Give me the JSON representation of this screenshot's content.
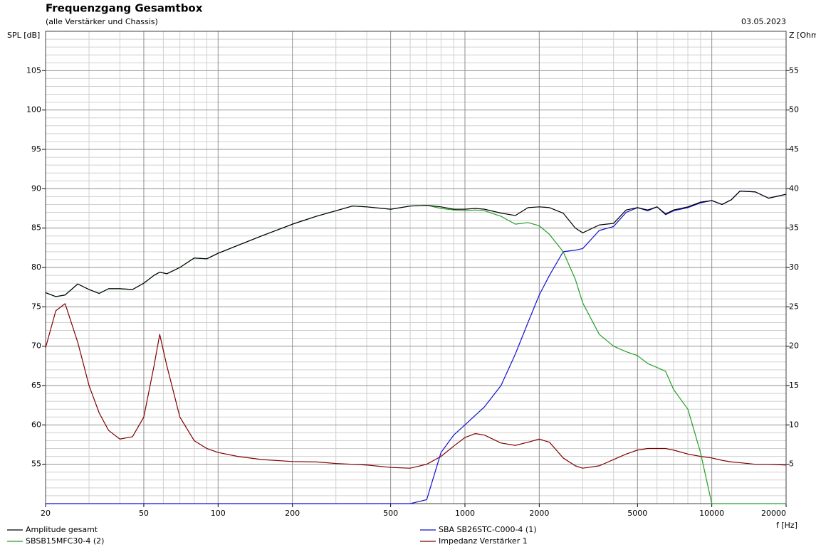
{
  "chart_data": {
    "type": "line",
    "title": "Frequenzgang Gesamtbox",
    "subtitle": "(alle Verstärker und Chassis)",
    "date": "03.05.2023",
    "ylabel": "SPL [dB]",
    "y2label": "Z [Ohm]",
    "xlabel": "f [Hz]",
    "xscale": "log",
    "grid": true,
    "legend": "bottom",
    "x": [
      20,
      22,
      24,
      27,
      30,
      33,
      36,
      40,
      45,
      50,
      55,
      58,
      62,
      70,
      80,
      90,
      100,
      120,
      150,
      200,
      250,
      300,
      350,
      400,
      500,
      600,
      700,
      800,
      900,
      1000,
      1100,
      1200,
      1400,
      1600,
      1800,
      2000,
      2200,
      2500,
      2800,
      3000,
      3500,
      4000,
      4500,
      5000,
      5500,
      6000,
      6500,
      7000,
      8000,
      9000,
      10000,
      11000,
      12000,
      13000,
      15000,
      17000,
      20000
    ],
    "series": [
      {
        "name": "Amplitude gesamt",
        "color": "#000000",
        "values": [
          76.8,
          76.3,
          76.5,
          77.9,
          77.2,
          76.7,
          77.3,
          77.3,
          77.2,
          78.0,
          79.0,
          79.4,
          79.2,
          80.0,
          81.2,
          81.1,
          81.8,
          82.8,
          84.0,
          85.5,
          86.5,
          87.2,
          87.8,
          87.7,
          87.4,
          87.8,
          87.9,
          87.7,
          87.4,
          87.4,
          87.5,
          87.4,
          86.9,
          86.6,
          87.6,
          87.7,
          87.6,
          86.9,
          85.0,
          84.4,
          85.4,
          85.6,
          87.3,
          87.6,
          87.3,
          87.7,
          86.8,
          87.3,
          87.7,
          88.3,
          88.5,
          88.0,
          88.6,
          89.7,
          89.6,
          88.8,
          89.3
        ]
      },
      {
        "name": "SBSB15MFC30-4 (2)",
        "color": "#22a022",
        "values": [
          76.8,
          76.3,
          76.5,
          77.9,
          77.2,
          76.7,
          77.3,
          77.3,
          77.2,
          78.0,
          79.0,
          79.4,
          79.2,
          80.0,
          81.2,
          81.1,
          81.8,
          82.8,
          84.0,
          85.5,
          86.5,
          87.2,
          87.8,
          87.7,
          87.4,
          87.8,
          87.9,
          87.5,
          87.3,
          87.2,
          87.3,
          87.2,
          86.5,
          85.5,
          85.7,
          85.3,
          84.2,
          82.0,
          78.5,
          75.5,
          71.5,
          70.0,
          69.3,
          68.8,
          67.8,
          67.3,
          66.8,
          64.5,
          62.0,
          56.5,
          50,
          50,
          50,
          50,
          50,
          50,
          50
        ]
      },
      {
        "name": "SBA SB26STC-C000-4 (1)",
        "color": "#1010d0",
        "values": [
          50,
          50,
          50,
          50,
          50,
          50,
          50,
          50,
          50,
          50,
          50,
          50,
          50,
          50,
          50,
          50,
          50,
          50,
          50,
          50,
          50,
          50,
          50,
          50,
          50,
          50,
          50.5,
          56.5,
          58.7,
          60.0,
          61.2,
          62.3,
          65.0,
          69.0,
          73.0,
          76.5,
          79.0,
          82.0,
          82.2,
          82.4,
          84.7,
          85.2,
          87.0,
          87.6,
          87.2,
          87.7,
          86.7,
          87.2,
          87.6,
          88.2,
          88.5,
          88.0,
          88.6,
          89.7,
          89.6,
          88.8,
          89.3
        ]
      },
      {
        "name": "Impedanz Verstärker 1",
        "color": "#800000",
        "axis": "y2",
        "values": [
          19.8,
          24.5,
          25.4,
          20.5,
          15.0,
          11.5,
          9.3,
          8.2,
          8.5,
          11.0,
          17.5,
          21.5,
          17.5,
          11.0,
          8.0,
          7.0,
          6.5,
          6.0,
          5.6,
          5.35,
          5.3,
          5.1,
          5.0,
          4.9,
          4.6,
          4.5,
          5.0,
          6.0,
          7.3,
          8.4,
          8.9,
          8.7,
          7.7,
          7.4,
          7.8,
          8.2,
          7.8,
          5.8,
          4.8,
          4.5,
          4.8,
          5.6,
          6.3,
          6.8,
          7.0,
          7.0,
          7.0,
          6.8,
          6.3,
          6.0,
          5.8,
          5.5,
          5.3,
          5.2,
          5.0,
          5.0,
          4.9
        ]
      }
    ],
    "xlim": [
      20,
      20000
    ],
    "xticks": [
      20,
      50,
      100,
      200,
      500,
      1000,
      2000,
      5000,
      10000,
      20000
    ],
    "xminorticks": [
      30,
      40,
      60,
      70,
      80,
      90,
      300,
      400,
      600,
      700,
      800,
      900,
      3000,
      4000,
      6000,
      7000,
      8000,
      9000
    ],
    "ylim": [
      50,
      110
    ],
    "yticks": [
      55,
      60,
      65,
      70,
      75,
      80,
      85,
      90,
      95,
      100,
      105
    ],
    "yminorticks": [
      51,
      52,
      53,
      54,
      56,
      57,
      58,
      59,
      61,
      62,
      63,
      64,
      66,
      67,
      68,
      69,
      71,
      72,
      73,
      74,
      76,
      77,
      78,
      79,
      81,
      82,
      83,
      84,
      86,
      87,
      88,
      89,
      91,
      92,
      93,
      94,
      96,
      97,
      98,
      99,
      101,
      102,
      103,
      104,
      106,
      107,
      108,
      109
    ],
    "y2lim": [
      0,
      60
    ],
    "y2ticks": [
      5,
      10,
      15,
      20,
      25,
      30,
      35,
      40,
      45,
      50,
      55
    ]
  }
}
